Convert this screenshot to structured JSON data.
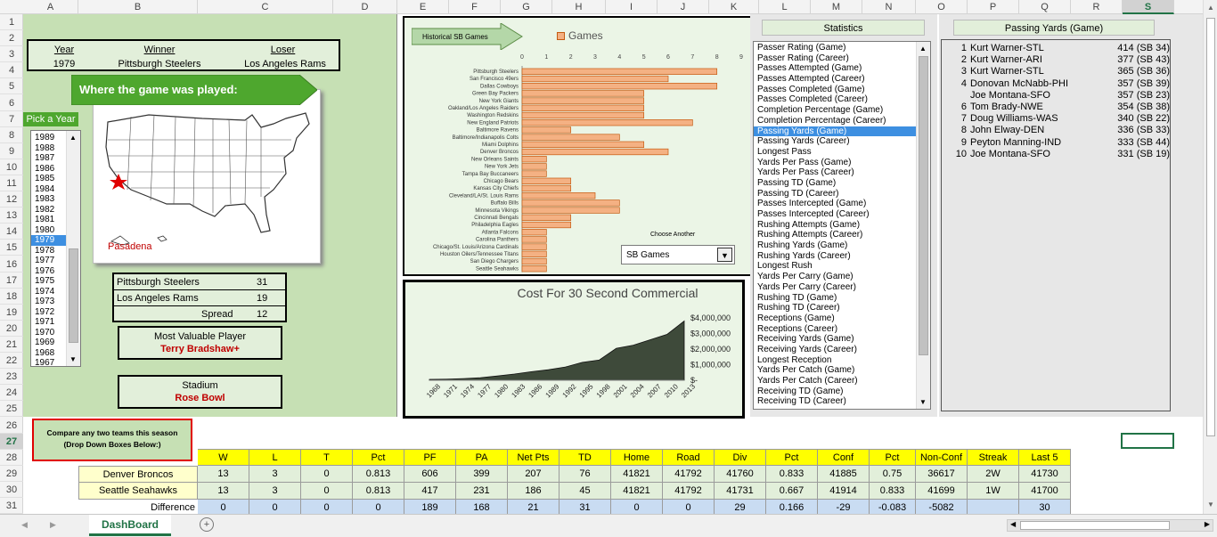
{
  "columns": [
    "A",
    "B",
    "C",
    "D",
    "E",
    "F",
    "G",
    "H",
    "I",
    "J",
    "K",
    "L",
    "M",
    "N",
    "O",
    "P",
    "Q",
    "R",
    "S"
  ],
  "selected_column": "S",
  "rows": [
    "1",
    "2",
    "3",
    "4",
    "5",
    "6",
    "7",
    "8",
    "9",
    "10",
    "11",
    "12",
    "13",
    "14",
    "15",
    "16",
    "17",
    "18",
    "19",
    "20",
    "21",
    "22",
    "23",
    "24",
    "25",
    "26",
    "27",
    "28",
    "29",
    "30",
    "31"
  ],
  "selected_row": "27",
  "game": {
    "year_label": "Year",
    "winner_label": "Winner",
    "loser_label": "Loser",
    "year": "1979",
    "winner": "Pittsburgh Steelers",
    "loser": "Los Angeles Rams",
    "where_banner": "Where the game was played:",
    "city": "Pasadena",
    "pick_year_label": "Pick a Year",
    "score_winner_team": "Pittsburgh Steelers",
    "score_winner": "31",
    "score_loser_team": "Los Angeles Rams",
    "score_loser": "19",
    "spread_label": "Spread",
    "spread": "12",
    "mvp_label": "Most Valuable Player",
    "mvp": "Terry Bradshaw+",
    "stadium_label": "Stadium",
    "stadium": "Rose Bowl"
  },
  "years": [
    "1989",
    "1988",
    "1987",
    "1986",
    "1985",
    "1984",
    "1983",
    "1982",
    "1981",
    "1980",
    "1979",
    "1978",
    "1977",
    "1976",
    "1975",
    "1974",
    "1973",
    "1972",
    "1971",
    "1970",
    "1969",
    "1968",
    "1967"
  ],
  "selected_year": "1979",
  "hist_chart": {
    "arrow_label": "Historical SB Games",
    "legend": "Games",
    "choose_label": "Choose Another",
    "dropdown_value": "SB Games",
    "color": "#f4b183"
  },
  "chart_data": [
    {
      "type": "bar",
      "legend": "Games",
      "categories": [
        "Pittsburgh Steelers",
        "San Francisco 49ers",
        "Dallas Cowboys",
        "Green Bay Packers",
        "New York Giants",
        "Oakland/Los Angeles Raiders",
        "Washington Redskins",
        "New England Patriots",
        "Baltimore Ravens",
        "Baltimore/Indianapolis Colts",
        "Miami Dolphins",
        "Denver Broncos",
        "New Orleans Saints",
        "New York Jets",
        "Tampa Bay Buccaneers",
        "Chicago Bears",
        "Kansas City Chiefs",
        "Cleveland/LA/St. Louis Rams",
        "Buffalo Bills",
        "Minnesota Vikings",
        "Cincinnati Bengals",
        "Philadelphia Eagles",
        "Atlanta Falcons",
        "Carolina Panthers",
        "Chicago/St. Louis/Arizona Cardinals",
        "Houston Oilers/Tennessee Titans",
        "San Diego Chargers",
        "Seattle Seahawks"
      ],
      "values": [
        8,
        6,
        8,
        5,
        5,
        5,
        5,
        7,
        2,
        4,
        5,
        6,
        1,
        1,
        1,
        2,
        2,
        3,
        4,
        4,
        2,
        2,
        1,
        1,
        1,
        1,
        1,
        1
      ],
      "xticks": [
        "0",
        "1",
        "2",
        "3",
        "4",
        "5",
        "6",
        "7",
        "8",
        "9"
      ],
      "xlim": [
        0,
        9
      ]
    },
    {
      "type": "area",
      "title": "Cost For 30 Second Commercial",
      "x": [
        "1968",
        "1971",
        "1974",
        "1977",
        "1980",
        "1983",
        "1986",
        "1989",
        "1992",
        "1995",
        "1998",
        "2001",
        "2004",
        "2007",
        "2010",
        "2013"
      ],
      "values": [
        54000,
        72000,
        107000,
        162000,
        275000,
        400000,
        550000,
        675000,
        850000,
        1150000,
        1300000,
        2050000,
        2250000,
        2600000,
        2950000,
        3800000
      ],
      "yticks": [
        "$4,000,000",
        "$3,000,000",
        "$2,000,000",
        "$1,000,000",
        "$-"
      ],
      "ylim": [
        0,
        4000000
      ]
    }
  ],
  "statistics": {
    "header": "Statistics",
    "items": [
      "Passer Rating (Game)",
      "Passer Rating (Career)",
      "Passes Attempted (Game)",
      "Passes Attempted (Career)",
      "Passes Completed (Game)",
      "Passes Completed (Career)",
      "Completion Percentage (Game)",
      "Completion Percentage (Career)",
      "Passing Yards (Game)",
      "Passing Yards (Career)",
      "Longest Pass",
      "Yards Per Pass (Game)",
      "Yards Per Pass (Career)",
      "Passing TD (Game)",
      "Passing TD (Career)",
      "Passes Intercepted (Game)",
      "Passes Intercepted (Career)",
      "Rushing Attempts (Game)",
      "Rushing Attempts (Career)",
      "Rushing Yards (Game)",
      "Rushing Yards (Career)",
      "Longest Rush",
      "Yards Per Carry (Game)",
      "Yards Per Carry (Career)",
      "Rushing TD (Game)",
      "Rushing TD (Career)",
      "Receptions (Game)",
      "Receptions (Career)",
      "Receiving Yards (Game)",
      "Receiving Yards (Career)",
      "Longest Reception",
      "Yards Per Catch (Game)",
      "Yards Per Catch (Career)",
      "Receiving TD (Game)",
      "Receiving TD (Career)"
    ],
    "selected": "Passing Yards (Game)"
  },
  "leaders": {
    "header": "Passing Yards (Game)",
    "rows": [
      {
        "rank": "1",
        "name": "Kurt Warner-STL",
        "value": "414 (SB 34)"
      },
      {
        "rank": "2",
        "name": "Kurt Warner-ARI",
        "value": "377 (SB 43)"
      },
      {
        "rank": "3",
        "name": "Kurt Warner-STL",
        "value": "365 (SB 36)"
      },
      {
        "rank": "4",
        "name": "Donovan McNabb-PHI",
        "value": "357 (SB 39)"
      },
      {
        "rank": "",
        "name": "Joe Montana-SFO",
        "value": "357 (SB 23)"
      },
      {
        "rank": "6",
        "name": "Tom Brady-NWE",
        "value": "354 (SB 38)"
      },
      {
        "rank": "7",
        "name": "Doug Williams-WAS",
        "value": "340 (SB 22)"
      },
      {
        "rank": "8",
        "name": "John Elway-DEN",
        "value": "336 (SB 33)"
      },
      {
        "rank": "9",
        "name": "Peyton Manning-IND",
        "value": "333 (SB 44)"
      },
      {
        "rank": "10",
        "name": "Joe Montana-SFO",
        "value": "331 (SB 19)"
      }
    ]
  },
  "compare": {
    "label": "Compare any two teams this season (Drop Down Boxes Below:)",
    "headers": [
      "W",
      "L",
      "T",
      "Pct",
      "PF",
      "PA",
      "Net Pts",
      "TD",
      "Home",
      "Road",
      "Div",
      "Pct",
      "Conf",
      "Pct",
      "Non-Conf",
      "Streak",
      "Last 5"
    ],
    "team1": {
      "name": "Denver Broncos",
      "values": [
        "13",
        "3",
        "0",
        "0.813",
        "606",
        "399",
        "207",
        "76",
        "41821",
        "41792",
        "41760",
        "0.833",
        "41885",
        "0.75",
        "36617",
        "2W",
        "41730"
      ]
    },
    "team2": {
      "name": "Seattle Seahawks",
      "values": [
        "13",
        "3",
        "0",
        "0.813",
        "417",
        "231",
        "186",
        "45",
        "41821",
        "41792",
        "41731",
        "0.667",
        "41914",
        "0.833",
        "41699",
        "1W",
        "41700"
      ]
    },
    "diff": {
      "name": "Difference",
      "values": [
        "0",
        "0",
        "0",
        "0",
        "189",
        "168",
        "21",
        "31",
        "0",
        "0",
        "29",
        "0.166",
        "-29",
        "-0.083",
        "-5082",
        "",
        "30"
      ]
    }
  },
  "sheet_tab": "DashBoard"
}
